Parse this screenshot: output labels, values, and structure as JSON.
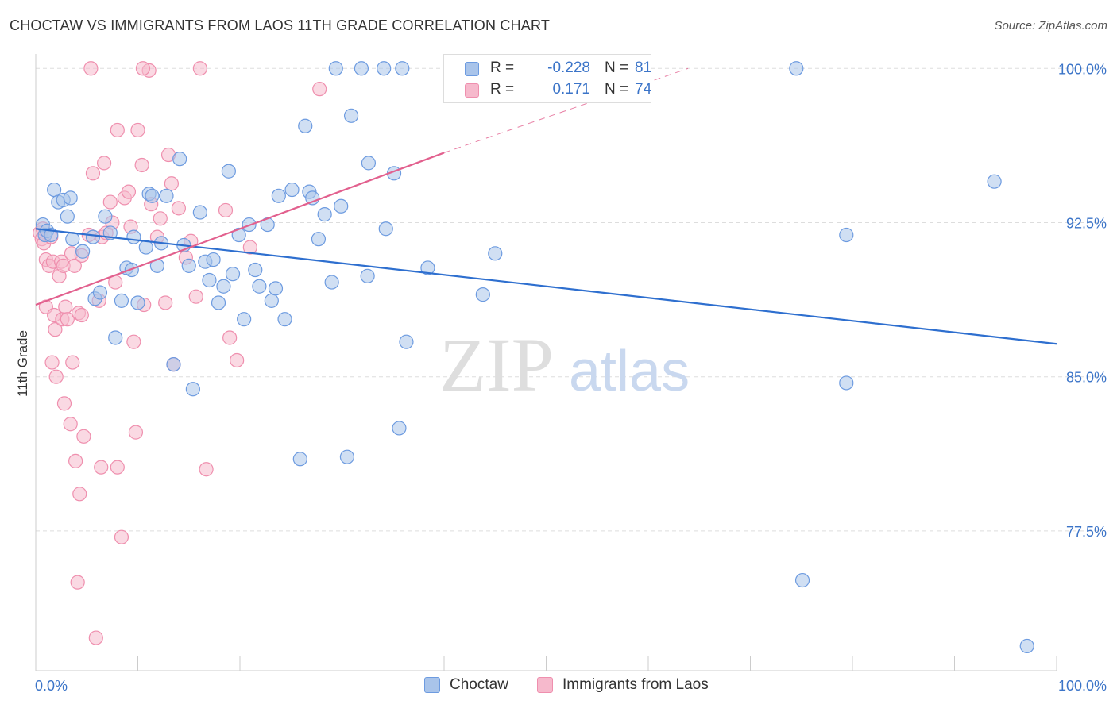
{
  "title": "CHOCTAW VS IMMIGRANTS FROM LAOS 11TH GRADE CORRELATION CHART",
  "source": "Source: ZipAtlas.com",
  "watermark": {
    "zip": "ZIP",
    "atlas": "atlas"
  },
  "legend": {
    "rows": [
      {
        "r_label": "R =",
        "r_value": "-0.228",
        "n_label": "N =",
        "n_value": "81"
      },
      {
        "r_label": "R =",
        "r_value": "0.171",
        "n_label": "N =",
        "n_value": "74"
      }
    ]
  },
  "bottom_legend": {
    "choctaw": "Choctaw",
    "laos": "Immigrants from Laos"
  },
  "colors": {
    "choctaw_fill": "#a9c4ea",
    "choctaw_stroke": "#6d9be0",
    "choctaw_line": "#2e6fcf",
    "laos_fill": "#f6b9cc",
    "laos_stroke": "#ef8fae",
    "laos_line": "#e2608e",
    "tick_label": "#3b74c8",
    "grid": "#dddddd"
  },
  "chart_data": {
    "type": "scatter",
    "title": "CHOCTAW VS IMMIGRANTS FROM LAOS 11TH GRADE CORRELATION CHART",
    "xlabel": "",
    "ylabel": "11th Grade",
    "xlim": [
      0,
      100
    ],
    "ylim": [
      70.7,
      101.4
    ],
    "x_tick_labels": [
      "0.0%",
      "100.0%"
    ],
    "y_ticks": [
      100.0,
      92.5,
      85.0,
      77.5
    ],
    "y_tick_labels": [
      "100.0%",
      "92.5%",
      "85.0%",
      "77.5%"
    ],
    "grid": "horizontal dashed",
    "series": [
      {
        "name": "Choctaw",
        "R": -0.228,
        "N": 81,
        "trend": {
          "x": [
            0,
            100
          ],
          "y": [
            92.2,
            86.6
          ]
        },
        "points": [
          [
            0.7,
            92.4
          ],
          [
            0.9,
            91.9
          ],
          [
            1.1,
            92.1
          ],
          [
            1.5,
            91.9
          ],
          [
            1.8,
            94.1
          ],
          [
            2.2,
            93.5
          ],
          [
            2.7,
            93.6
          ],
          [
            3.1,
            92.8
          ],
          [
            3.4,
            93.7
          ],
          [
            3.6,
            91.7
          ],
          [
            4.6,
            91.1
          ],
          [
            5.6,
            91.8
          ],
          [
            5.8,
            88.8
          ],
          [
            6.3,
            89.1
          ],
          [
            6.8,
            92.8
          ],
          [
            7.3,
            92.0
          ],
          [
            7.8,
            86.9
          ],
          [
            8.4,
            88.7
          ],
          [
            8.9,
            90.3
          ],
          [
            9.4,
            90.2
          ],
          [
            9.6,
            91.8
          ],
          [
            10.0,
            88.6
          ],
          [
            10.8,
            91.3
          ],
          [
            11.1,
            93.9
          ],
          [
            11.4,
            93.8
          ],
          [
            11.9,
            90.4
          ],
          [
            12.3,
            91.5
          ],
          [
            12.8,
            93.8
          ],
          [
            13.5,
            85.6
          ],
          [
            14.1,
            95.6
          ],
          [
            14.5,
            91.4
          ],
          [
            15.0,
            90.4
          ],
          [
            15.4,
            84.4
          ],
          [
            16.1,
            93.0
          ],
          [
            16.6,
            90.6
          ],
          [
            17.0,
            89.7
          ],
          [
            17.4,
            90.7
          ],
          [
            17.9,
            88.6
          ],
          [
            18.4,
            89.4
          ],
          [
            18.9,
            95.0
          ],
          [
            19.3,
            90.0
          ],
          [
            19.9,
            91.9
          ],
          [
            20.4,
            87.8
          ],
          [
            20.9,
            92.4
          ],
          [
            21.5,
            90.2
          ],
          [
            21.9,
            89.4
          ],
          [
            22.7,
            92.4
          ],
          [
            23.1,
            88.7
          ],
          [
            23.5,
            89.3
          ],
          [
            23.8,
            93.8
          ],
          [
            24.4,
            87.8
          ],
          [
            25.1,
            94.1
          ],
          [
            25.9,
            81.0
          ],
          [
            26.4,
            97.2
          ],
          [
            26.8,
            94.0
          ],
          [
            27.1,
            93.7
          ],
          [
            27.7,
            91.7
          ],
          [
            28.3,
            92.9
          ],
          [
            29.0,
            89.6
          ],
          [
            29.4,
            100.0
          ],
          [
            29.9,
            93.3
          ],
          [
            30.5,
            81.1
          ],
          [
            30.9,
            97.7
          ],
          [
            31.9,
            100.0
          ],
          [
            32.5,
            89.9
          ],
          [
            32.6,
            95.4
          ],
          [
            34.1,
            100.0
          ],
          [
            34.3,
            92.2
          ],
          [
            35.1,
            94.9
          ],
          [
            35.6,
            82.5
          ],
          [
            35.9,
            100.0
          ],
          [
            36.3,
            86.7
          ],
          [
            38.4,
            90.3
          ],
          [
            43.8,
            89.0
          ],
          [
            45.0,
            91.0
          ],
          [
            51.5,
            100.0
          ],
          [
            74.5,
            100.0
          ],
          [
            75.1,
            75.1
          ],
          [
            79.4,
            84.7
          ],
          [
            79.4,
            91.9
          ],
          [
            93.9,
            94.5
          ],
          [
            97.1,
            71.9
          ]
        ]
      },
      {
        "name": "Immigrants from Laos",
        "R": 0.171,
        "N": 74,
        "trend": {
          "x": [
            0,
            40
          ],
          "y": [
            88.5,
            95.9
          ]
        },
        "trend_dashed": {
          "x": [
            40,
            63.9
          ],
          "y": [
            95.9,
            100.0
          ]
        },
        "points": [
          [
            0.4,
            92.0
          ],
          [
            0.6,
            91.7
          ],
          [
            0.7,
            92.2
          ],
          [
            0.8,
            91.5
          ],
          [
            1.0,
            90.7
          ],
          [
            1.0,
            88.4
          ],
          [
            1.3,
            90.4
          ],
          [
            1.5,
            91.8
          ],
          [
            1.6,
            85.7
          ],
          [
            1.7,
            90.6
          ],
          [
            1.8,
            88.0
          ],
          [
            1.9,
            87.3
          ],
          [
            2.0,
            85.0
          ],
          [
            2.3,
            89.9
          ],
          [
            2.5,
            90.6
          ],
          [
            2.6,
            87.8
          ],
          [
            2.7,
            90.4
          ],
          [
            2.8,
            83.7
          ],
          [
            2.9,
            88.4
          ],
          [
            3.1,
            87.8
          ],
          [
            3.4,
            82.7
          ],
          [
            3.5,
            91.0
          ],
          [
            3.6,
            85.7
          ],
          [
            3.8,
            90.4
          ],
          [
            3.9,
            80.9
          ],
          [
            4.1,
            75.0
          ],
          [
            4.2,
            88.1
          ],
          [
            4.3,
            79.3
          ],
          [
            4.5,
            90.9
          ],
          [
            4.5,
            88.0
          ],
          [
            4.7,
            82.1
          ],
          [
            5.2,
            91.9
          ],
          [
            5.6,
            94.9
          ],
          [
            5.9,
            72.3
          ],
          [
            6.2,
            88.7
          ],
          [
            6.4,
            80.6
          ],
          [
            6.5,
            91.8
          ],
          [
            6.7,
            95.4
          ],
          [
            6.9,
            92.0
          ],
          [
            7.3,
            93.5
          ],
          [
            7.5,
            92.5
          ],
          [
            7.8,
            89.6
          ],
          [
            8.0,
            80.6
          ],
          [
            8.4,
            77.2
          ],
          [
            8.7,
            93.7
          ],
          [
            9.1,
            94.0
          ],
          [
            9.3,
            92.3
          ],
          [
            9.6,
            86.7
          ],
          [
            9.8,
            82.3
          ],
          [
            10.0,
            97.0
          ],
          [
            10.4,
            95.3
          ],
          [
            10.6,
            88.5
          ],
          [
            11.1,
            99.9
          ],
          [
            11.3,
            93.4
          ],
          [
            11.9,
            91.8
          ],
          [
            12.2,
            92.7
          ],
          [
            12.7,
            88.6
          ],
          [
            13.0,
            95.8
          ],
          [
            13.3,
            94.4
          ],
          [
            13.5,
            85.6
          ],
          [
            14.0,
            93.2
          ],
          [
            14.7,
            90.8
          ],
          [
            15.2,
            91.6
          ],
          [
            15.7,
            88.9
          ],
          [
            16.1,
            100.0
          ],
          [
            16.7,
            80.5
          ],
          [
            18.6,
            93.1
          ],
          [
            19.0,
            86.9
          ],
          [
            19.7,
            85.8
          ],
          [
            21.0,
            91.3
          ],
          [
            27.8,
            99.0
          ],
          [
            8.0,
            97.0
          ],
          [
            5.4,
            100.0
          ],
          [
            10.5,
            100.0
          ]
        ]
      }
    ]
  }
}
